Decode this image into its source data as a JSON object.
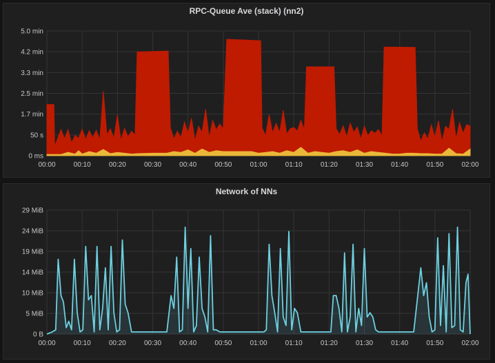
{
  "chart_data": [
    {
      "type": "area",
      "title": "RPC-Queue Ave (stack) (nn2)",
      "stacked": true,
      "x_ticks": [
        "00:00",
        "00:10",
        "00:20",
        "00:30",
        "00:40",
        "00:50",
        "01:00",
        "01:10",
        "01:20",
        "01:30",
        "01:40",
        "01:50",
        "02:00"
      ],
      "y_ticks": [
        "0 ms",
        "50 s",
        "1.7 min",
        "2.5 min",
        "3.3 min",
        "4.2 min",
        "5.0 min"
      ],
      "ylim": [
        0,
        300
      ],
      "x_unit": "minutes",
      "grid": true,
      "colors": {
        "bottom": "#eab839",
        "top": "#bf1b00"
      },
      "series": [
        {
          "role": "bottom",
          "x": [
            0,
            4,
            6,
            8,
            9,
            10,
            12,
            14,
            16,
            18,
            20,
            22,
            24,
            26,
            30,
            34,
            36,
            38,
            40,
            42,
            44,
            46,
            48,
            50,
            52,
            54,
            56,
            58,
            60,
            62,
            64,
            66,
            68,
            70,
            72,
            74,
            76,
            78,
            80,
            82,
            84,
            86,
            88,
            90,
            92,
            94,
            96,
            98,
            100,
            102,
            104,
            106,
            108,
            110,
            112,
            114,
            116,
            118,
            120
          ],
          "values": [
            3,
            3,
            8,
            4,
            12,
            4,
            10,
            6,
            15,
            5,
            8,
            6,
            4,
            5,
            6,
            6,
            10,
            8,
            14,
            6,
            16,
            8,
            12,
            10,
            10,
            10,
            10,
            10,
            6,
            8,
            10,
            6,
            12,
            8,
            20,
            6,
            10,
            8,
            6,
            10,
            12,
            8,
            14,
            6,
            10,
            8,
            6,
            4,
            4,
            6,
            6,
            5,
            5,
            4,
            4,
            18,
            5,
            4,
            16
          ]
        },
        {
          "role": "top",
          "x": [
            0,
            2,
            2.2,
            4,
            5,
            6,
            7,
            8,
            9,
            10,
            11,
            12,
            13,
            14,
            15,
            16,
            17,
            18,
            19,
            20,
            21,
            22,
            23,
            24,
            25,
            25.6,
            34.4,
            35,
            36,
            37,
            38,
            39,
            40,
            41,
            42,
            43,
            44,
            45,
            46,
            47,
            48,
            49,
            50,
            51,
            51.4,
            60.6,
            61,
            62,
            63,
            64,
            65,
            66,
            67,
            68,
            69,
            70,
            71,
            72,
            73,
            73.6,
            81.4,
            82,
            83,
            84,
            85,
            86,
            87,
            88,
            89,
            90,
            91,
            92,
            93,
            94,
            95,
            95.6,
            104.4,
            105,
            106,
            107,
            108,
            109,
            110,
            111,
            112,
            113,
            114,
            115,
            116,
            117,
            118,
            119,
            120
          ],
          "values": [
            120,
            120,
            20,
            60,
            35,
            55,
            25,
            45,
            30,
            60,
            32,
            50,
            35,
            55,
            28,
            140,
            40,
            60,
            35,
            90,
            30,
            60,
            40,
            55,
            45,
            245,
            245,
            60,
            30,
            50,
            35,
            70,
            40,
            80,
            30,
            60,
            40,
            100,
            35,
            75,
            50,
            65,
            55,
            270,
            270,
            270,
            60,
            40,
            90,
            45,
            70,
            50,
            100,
            40,
            55,
            60,
            45,
            65,
            50,
            205,
            205,
            55,
            40,
            60,
            35,
            70,
            45,
            55,
            30,
            65,
            40,
            50,
            45,
            55,
            40,
            255,
            255,
            60,
            30,
            50,
            35,
            70,
            40,
            80,
            30,
            60,
            45,
            100,
            35,
            75,
            50,
            65,
            55
          ]
        }
      ]
    },
    {
      "type": "line",
      "title": "Network of NNs",
      "x_ticks": [
        "00:00",
        "00:10",
        "00:20",
        "00:30",
        "00:40",
        "00:50",
        "01:00",
        "01:10",
        "01:20",
        "01:30",
        "01:40",
        "01:50",
        "02:00"
      ],
      "y_ticks": [
        "0 B",
        "5 MiB",
        "10 MiB",
        "14 MiB",
        "19 MiB",
        "24 MiB",
        "29 MiB"
      ],
      "ylim": [
        0,
        29
      ],
      "x_unit": "minutes",
      "grid": true,
      "color": "#6ed0e0",
      "series": [
        {
          "name": "",
          "x": [
            0,
            1.5,
            2.5,
            3.2,
            4,
            4.7,
            5.5,
            6.2,
            7,
            7.8,
            8.6,
            9.4,
            10.2,
            11,
            11.8,
            12.6,
            13.4,
            14.2,
            15,
            15.8,
            16.6,
            17.4,
            18.2,
            19,
            19.8,
            20.6,
            21.4,
            22.2,
            23,
            24,
            30,
            34,
            35.2,
            36,
            36.8,
            37.6,
            38.4,
            39.2,
            40,
            40.8,
            41.6,
            42.4,
            43.2,
            44,
            44.8,
            45.6,
            46.4,
            47.2,
            48,
            49,
            60,
            61.5,
            62.2,
            63,
            63.8,
            64.6,
            65.4,
            66.2,
            67,
            67.8,
            68.6,
            69.4,
            70.2,
            71,
            72,
            78,
            80.5,
            81.2,
            82,
            82.8,
            83.6,
            84.4,
            85.2,
            86,
            86.8,
            87.6,
            88.4,
            89.2,
            90,
            90.8,
            91.6,
            92.4,
            93.2,
            94,
            95,
            104,
            106,
            106.8,
            107.6,
            108.4,
            109.2,
            110,
            110.8,
            111.6,
            112.4,
            113.2,
            114,
            114.8,
            115.6,
            116.4,
            117.2,
            118,
            118.8,
            119.4,
            120
          ],
          "values": [
            0,
            0.5,
            1,
            17.5,
            9,
            7.5,
            1.5,
            3,
            1,
            17.5,
            5,
            0.5,
            1,
            20.5,
            8,
            9,
            0.5,
            20.5,
            1,
            6,
            15.5,
            1,
            20.5,
            5,
            0.5,
            1,
            22,
            7,
            5,
            0.5,
            0.5,
            0.5,
            9,
            6,
            18,
            0.5,
            1,
            25,
            6,
            20,
            0.5,
            2,
            18,
            6,
            4,
            0.5,
            23,
            1,
            1,
            0.5,
            0.5,
            0.5,
            1,
            21,
            9,
            5,
            0.5,
            20,
            4,
            2,
            24,
            1,
            6,
            5,
            0.5,
            0.5,
            0.5,
            9,
            9,
            6,
            0.5,
            19,
            0.5,
            4,
            21,
            0.5,
            6,
            2,
            20,
            4,
            5,
            4,
            1,
            0.5,
            0.5,
            0.5,
            15.5,
            9,
            12,
            4,
            0.5,
            1,
            22.5,
            2,
            16,
            0.5,
            23.5,
            1.5,
            2,
            25,
            1,
            0.5,
            12,
            14,
            0
          ]
        }
      ]
    }
  ]
}
